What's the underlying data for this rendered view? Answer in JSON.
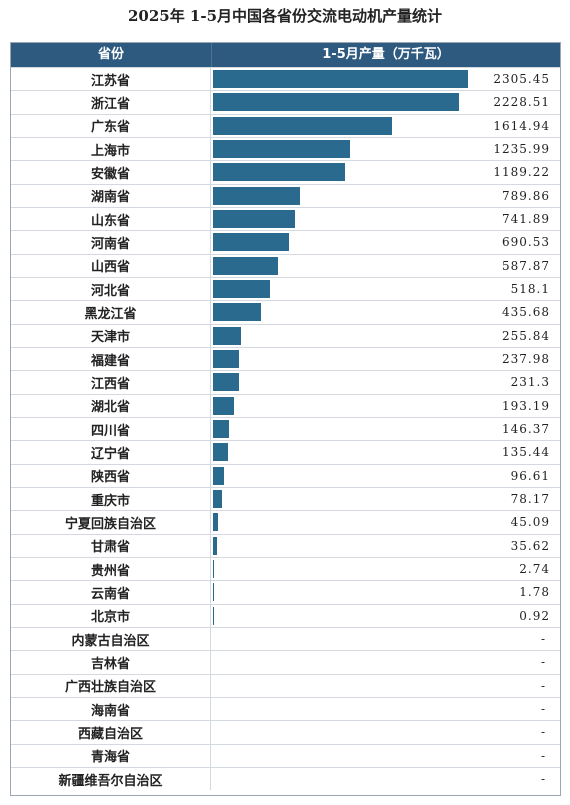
{
  "chart_data": {
    "type": "bar",
    "title": "2025年 1-5月中国各省份交流电动机产量统计",
    "columns": [
      "省份",
      "1-5月产量（万千瓦）"
    ],
    "categories": [
      "江苏省",
      "浙江省",
      "广东省",
      "上海市",
      "安徽省",
      "湖南省",
      "山东省",
      "河南省",
      "山西省",
      "河北省",
      "黑龙江省",
      "天津市",
      "福建省",
      "江西省",
      "湖北省",
      "四川省",
      "辽宁省",
      "陕西省",
      "重庆市",
      "宁夏回族自治区",
      "甘肃省",
      "贵州省",
      "云南省",
      "北京市",
      "内蒙古自治区",
      "吉林省",
      "广西壮族自治区",
      "海南省",
      "西藏自治区",
      "青海省",
      "新疆维吾尔自治区"
    ],
    "values": [
      2305.45,
      2228.51,
      1614.94,
      1235.99,
      1189.22,
      789.86,
      741.89,
      690.53,
      587.87,
      518.1,
      435.68,
      255.84,
      237.98,
      231.3,
      193.19,
      146.37,
      135.44,
      96.61,
      78.17,
      45.09,
      35.62,
      2.74,
      1.78,
      0.92,
      null,
      null,
      null,
      null,
      null,
      null,
      null
    ],
    "labels": [
      "2305.45",
      "2228.51",
      "1614.94",
      "1235.99",
      "1189.22",
      "789.86",
      "741.89",
      "690.53",
      "587.87",
      "518.1",
      "435.68",
      "255.84",
      "237.98",
      "231.3",
      "193.19",
      "146.37",
      "135.44",
      "96.61",
      "78.17",
      "45.09",
      "35.62",
      "2.74",
      "1.78",
      "0.92",
      "-",
      "-",
      "-",
      "-",
      "-",
      "-",
      "-"
    ],
    "xlim": [
      0,
      2305.45
    ],
    "bar_color": "#2a6a8f",
    "header_color": "#2e5a80"
  }
}
